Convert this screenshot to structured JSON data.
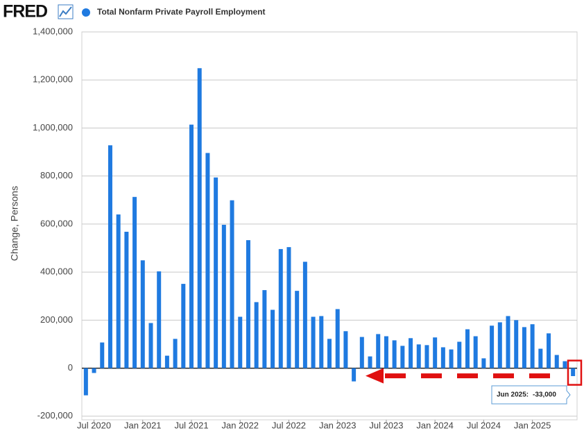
{
  "chart_data": {
    "type": "bar",
    "logo": "FRED",
    "series": [
      {
        "name": "Total Nonfarm Private Payroll Employment",
        "color": "#1f7ae0",
        "values": [
          -113000,
          -20000,
          107000,
          928000,
          640000,
          568000,
          713000,
          449000,
          188000,
          403000,
          52000,
          122000,
          351000,
          1014000,
          1249000,
          896000,
          794000,
          597000,
          699000,
          214000,
          533000,
          275000,
          325000,
          243000,
          496000,
          504000,
          322000,
          443000,
          214000,
          217000,
          122000,
          246000,
          154000,
          -55000,
          130000,
          49000,
          142000,
          133000,
          116000,
          93000,
          125000,
          99000,
          96000,
          128000,
          87000,
          78000,
          110000,
          162000,
          133000,
          41000,
          177000,
          191000,
          217000,
          200000,
          171000,
          183000,
          81000,
          145000,
          55000,
          29000,
          -33000
        ]
      }
    ],
    "categories": [
      null,
      "Jul 2020",
      null,
      null,
      null,
      null,
      null,
      "Jan 2021",
      null,
      null,
      null,
      null,
      null,
      "Jul 2021",
      null,
      null,
      null,
      null,
      null,
      "Jan 2022",
      null,
      null,
      null,
      null,
      null,
      "Jul 2022",
      null,
      null,
      null,
      null,
      null,
      "Jan 2023",
      null,
      null,
      null,
      null,
      null,
      "Jul 2023",
      null,
      null,
      null,
      null,
      null,
      "Jan 2024",
      null,
      null,
      null,
      null,
      null,
      "Jul 2024",
      null,
      null,
      null,
      null,
      null,
      "Jan 2025",
      null,
      null,
      null,
      null,
      null
    ],
    "y_label": "Change, Persons",
    "ylim": [
      -215000,
      1400000
    ],
    "yticks": [
      {
        "value": -200000,
        "label": "-200,000"
      },
      0,
      {
        "value": 200000,
        "label": "200,000"
      },
      {
        "value": 400000,
        "label": "400,000"
      },
      {
        "value": 600000,
        "label": "600,000"
      },
      {
        "value": 800000,
        "label": "800,000"
      },
      {
        "value": 1000000,
        "label": "1,000,000"
      },
      {
        "value": 1200000,
        "label": "1,200,000"
      },
      {
        "value": 1400000,
        "label": "1,400,000"
      }
    ],
    "grid": true,
    "tooltip": {
      "date": "Jun 2025:",
      "value": "-33,000"
    }
  }
}
